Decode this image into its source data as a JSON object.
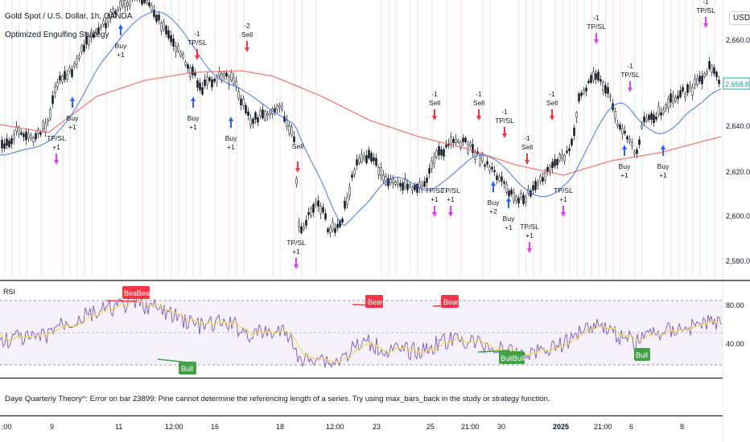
{
  "header": {
    "symbol": "Gold Spot / U.S. Dollar, 1h, OANDA",
    "strategy": "Optimized Engulfing Strategy"
  },
  "price_axis": {
    "currency_button": "USD",
    "ticks": [
      "2,660.000",
      "2,640.000",
      "2,620.000",
      "2,600.000",
      "2,580.000"
    ],
    "last_price": "2,658.815",
    "last_price_color": "#26a69a"
  },
  "rsi_pane": {
    "title": "RSI",
    "ticks": [
      "80.00",
      "40.00"
    ],
    "bear_labels": [
      "BeaBear",
      "Bear",
      "Bear"
    ],
    "bull_labels": [
      "Bull",
      "BullBull",
      "Bull"
    ],
    "colors": {
      "rsi": "#7e57c2",
      "ma": "#f2d74a",
      "bear": "#f23645",
      "bull": "#43a047",
      "band": "#ede7f6"
    }
  },
  "error_bar": {
    "text": "Daye Quarterly Theory^: Error on bar 23899: Pine cannot determine the referencing length of a series. Try using max_bars_back in the study or strategy function."
  },
  "time_axis": {
    "labels": [
      ":00",
      "9",
      "11",
      "12:00",
      "16",
      "18",
      "12:00",
      "23",
      "25",
      "21:00",
      "30",
      "2025",
      "21:00",
      "6",
      "8"
    ]
  },
  "annotations": [
    {
      "text": "Buy",
      "sub": "+1"
    },
    {
      "text": "TP/SL",
      "sub": "+1"
    },
    {
      "text": "Buy",
      "sub": "+1"
    },
    {
      "text": "-1",
      "sub": "TP/SL"
    },
    {
      "text": "Buy",
      "sub": "+1"
    },
    {
      "text": "Buy",
      "sub": "+1"
    },
    {
      "text": "-2",
      "sub": "Sell"
    },
    {
      "text": "Sell",
      "sub": ""
    },
    {
      "text": "TP/SL",
      "sub": "+1"
    },
    {
      "text": "-1",
      "sub": "Sell"
    },
    {
      "text": "TP/SL",
      "sub": "+1"
    },
    {
      "text": "-1",
      "sub": "Sell"
    },
    {
      "text": "TP/SL",
      "sub": "+1"
    },
    {
      "text": "-1",
      "sub": "TP/SL"
    },
    {
      "text": "-1",
      "sub": "Sell"
    },
    {
      "text": "Buy",
      "sub": "+2"
    },
    {
      "text": "Buy",
      "sub": "+1"
    },
    {
      "text": "TP/SL",
      "sub": "+1"
    },
    {
      "text": "TP/SL",
      "sub": "+1"
    },
    {
      "text": "-1",
      "sub": "Sell"
    },
    {
      "text": "-1",
      "sub": "TP/SL"
    },
    {
      "text": "-1",
      "sub": "TP/SL"
    },
    {
      "text": "Buy",
      "sub": "+1"
    },
    {
      "text": "Buy",
      "sub": "+1"
    },
    {
      "text": "-1",
      "sub": "TP/SL"
    }
  ],
  "colors": {
    "ma_fast": "#2962ff",
    "ma_slow": "#f23645",
    "buy_arrow": "#2962ff",
    "sell_arrow": "#f23645",
    "tp_arrow": "#e040fb"
  }
}
